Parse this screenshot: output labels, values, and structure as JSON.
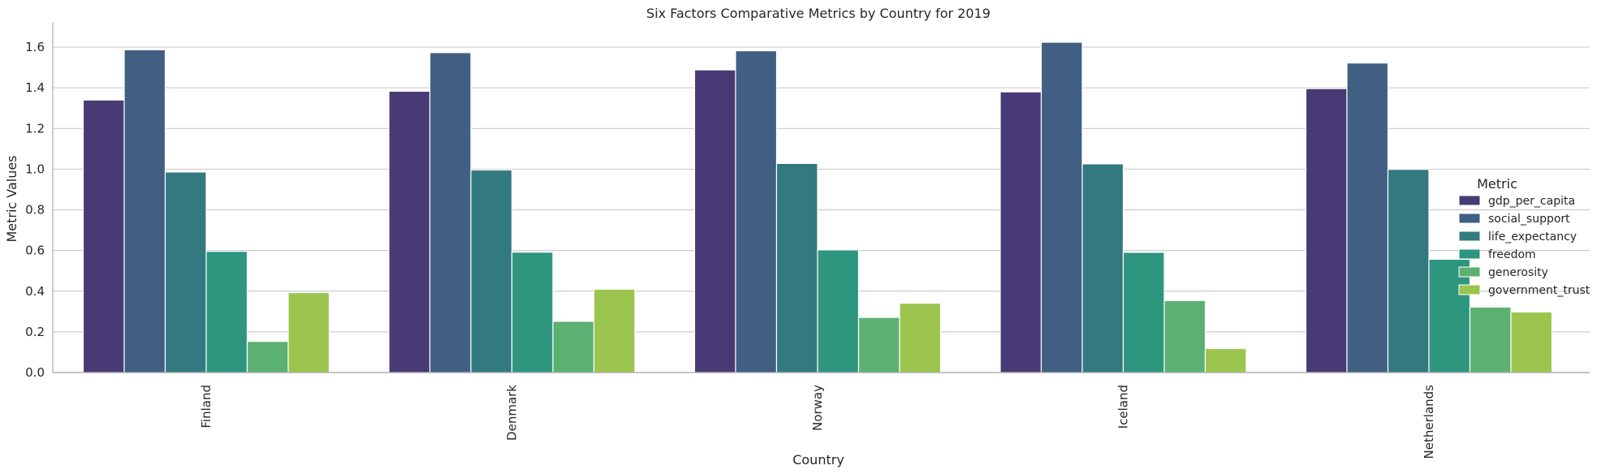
{
  "chart_data": {
    "type": "bar",
    "title": "Six Factors Comparative Metrics by Country for 2019",
    "xlabel": "Country",
    "ylabel": "Metric Values",
    "categories": [
      "Finland",
      "Denmark",
      "Norway",
      "Iceland",
      "Netherlands"
    ],
    "ylim": [
      0,
      1.72
    ],
    "yticks": [
      0.0,
      0.2,
      0.4,
      0.6,
      0.8,
      1.0,
      1.2,
      1.4,
      1.6
    ],
    "ytick_labels": [
      "0.0",
      "0.2",
      "0.4",
      "0.6",
      "0.8",
      "1.0",
      "1.2",
      "1.4",
      "1.6"
    ],
    "grid": "horizontal",
    "legend_title": "Metric",
    "legend_placement": "center-right",
    "series": [
      {
        "name": "gdp_per_capita",
        "color": "#483a74",
        "values": [
          1.34,
          1.383,
          1.488,
          1.38,
          1.396
        ]
      },
      {
        "name": "social_support",
        "color": "#405f82",
        "values": [
          1.587,
          1.573,
          1.582,
          1.624,
          1.522
        ]
      },
      {
        "name": "life_expectancy",
        "color": "#337a80",
        "values": [
          0.986,
          0.996,
          1.028,
          1.026,
          0.999
        ]
      },
      {
        "name": "freedom",
        "color": "#2e957f",
        "values": [
          0.596,
          0.592,
          0.603,
          0.591,
          0.557
        ]
      },
      {
        "name": "generosity",
        "color": "#5bb172",
        "values": [
          0.153,
          0.252,
          0.271,
          0.354,
          0.322
        ]
      },
      {
        "name": "government_trust",
        "color": "#9bc54e",
        "values": [
          0.393,
          0.41,
          0.341,
          0.118,
          0.298
        ]
      }
    ]
  }
}
